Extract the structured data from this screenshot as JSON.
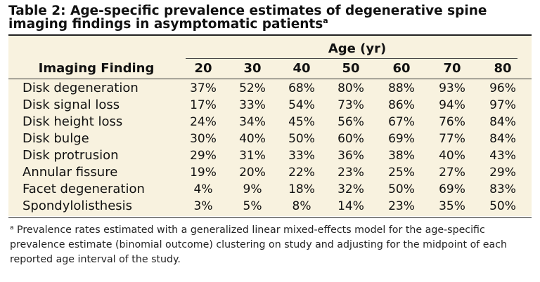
{
  "title": "Table 2: Age-specific prevalence estimates of degenerative spine imaging findings in asymptomatic patients",
  "title_marker": "a",
  "table": {
    "age_header": "Age (yr)",
    "finding_header": "Imaging Finding",
    "age_columns": [
      "20",
      "30",
      "40",
      "50",
      "60",
      "70",
      "80"
    ],
    "rows": [
      {
        "finding": "Disk degeneration",
        "values": [
          "37%",
          "52%",
          "68%",
          "80%",
          "88%",
          "93%",
          "96%"
        ]
      },
      {
        "finding": "Disk signal loss",
        "values": [
          "17%",
          "33%",
          "54%",
          "73%",
          "86%",
          "94%",
          "97%"
        ]
      },
      {
        "finding": "Disk height loss",
        "values": [
          "24%",
          "34%",
          "45%",
          "56%",
          "67%",
          "76%",
          "84%"
        ]
      },
      {
        "finding": "Disk bulge",
        "values": [
          "30%",
          "40%",
          "50%",
          "60%",
          "69%",
          "77%",
          "84%"
        ]
      },
      {
        "finding": "Disk protrusion",
        "values": [
          "29%",
          "31%",
          "33%",
          "36%",
          "38%",
          "40%",
          "43%"
        ]
      },
      {
        "finding": "Annular fissure",
        "values": [
          "19%",
          "20%",
          "22%",
          "23%",
          "25%",
          "27%",
          "29%"
        ]
      },
      {
        "finding": "Facet degeneration",
        "values": [
          "4%",
          "9%",
          "18%",
          "32%",
          "50%",
          "69%",
          "83%"
        ]
      },
      {
        "finding": "Spondylolisthesis",
        "values": [
          "3%",
          "5%",
          "8%",
          "14%",
          "23%",
          "35%",
          "50%"
        ]
      }
    ]
  },
  "footnote_marker": "a",
  "footnote": "Prevalence rates estimated with a generalized linear mixed-effects model for the age-specific prevalence estimate (binomial outcome) clustering on study and adjusting for the midpoint of each reported age interval of the study.",
  "colors": {
    "table_background": "#f8f2df",
    "rule": "#222222",
    "text": "#111111"
  }
}
